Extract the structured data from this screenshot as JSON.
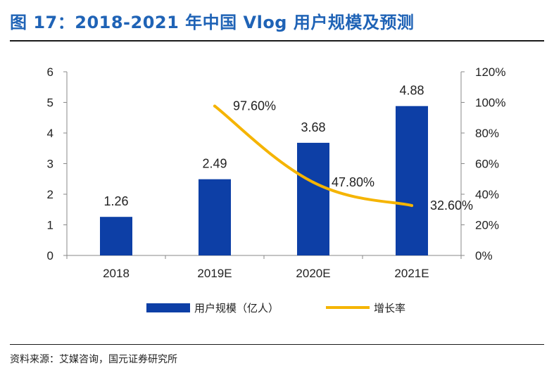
{
  "figure": {
    "title": "图 17：2018-2021 年中国 Vlog 用户规模及预测",
    "source": "资料来源：艾媒咨询，国元证券研究所"
  },
  "colors": {
    "title": "#1f63b6",
    "bar": "#0d3fa6",
    "line": "#f5b400"
  },
  "chart_data": {
    "type": "bar",
    "categories": [
      "2018",
      "2019E",
      "2020E",
      "2021E"
    ],
    "series": [
      {
        "name": "用户规模（亿人）",
        "type": "bar",
        "axis": "left",
        "values": [
          1.26,
          2.49,
          3.68,
          4.88
        ],
        "labels": [
          "1.26",
          "2.49",
          "3.68",
          "4.88"
        ]
      },
      {
        "name": "增长率",
        "type": "line",
        "axis": "right",
        "values": [
          null,
          97.6,
          47.8,
          32.6
        ],
        "labels": [
          "",
          "97.60%",
          "47.80%",
          "32.60%"
        ]
      }
    ],
    "y_left": {
      "ylim": [
        0,
        6
      ],
      "ticks": [
        "0",
        "1",
        "2",
        "3",
        "4",
        "5",
        "6"
      ]
    },
    "y_right": {
      "ylim": [
        0,
        120
      ],
      "ticks": [
        "0%",
        "20%",
        "40%",
        "60%",
        "80%",
        "100%",
        "120%"
      ]
    },
    "legend": "bottom",
    "grid": false
  }
}
